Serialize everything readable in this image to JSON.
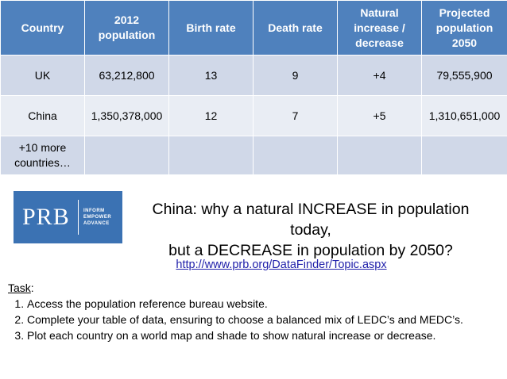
{
  "table": {
    "headers": [
      "Country",
      "2012 population",
      "Birth rate",
      "Death rate",
      "Natural increase / decrease",
      "Projected population 2050"
    ],
    "rows": [
      [
        "UK",
        "63,212,800",
        "13",
        "9",
        "+4",
        "79,555,900"
      ],
      [
        "China",
        "1,350,378,000",
        "12",
        "7",
        "+5",
        "1,310,651,000"
      ],
      [
        "+10 more countries…",
        "",
        "",
        "",
        "",
        ""
      ]
    ]
  },
  "logo": {
    "text": "PRB",
    "tagline": [
      "INFORM",
      "EMPOWER",
      "ADVANCE"
    ],
    "color": "#3b72b3"
  },
  "title": {
    "line1": "China: why a natural INCREASE in population today,",
    "line2": "but a DECREASE in population by 2050?"
  },
  "link": "http://www.prb.org/DataFinder/Topic.aspx",
  "task": {
    "label": "Task",
    "colon": ":",
    "items": [
      "Access the population reference bureau website.",
      "Complete your table of data, ensuring to choose a balanced mix of LEDC’s and MEDC’s.",
      "Plot each country on a world map and shade to show natural increase or decrease."
    ]
  },
  "colors": {
    "header_bg": "#4f81bd",
    "row_dark": "#d0d8e8",
    "row_light": "#e9edf4",
    "link": "#1f1faa"
  }
}
